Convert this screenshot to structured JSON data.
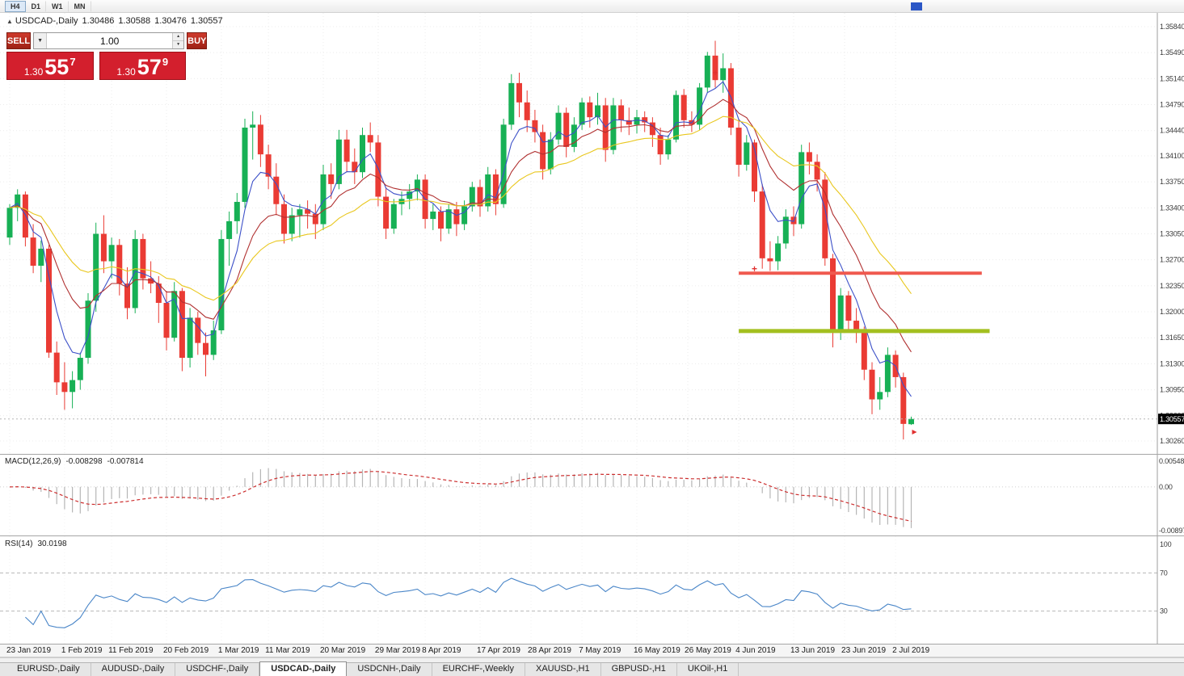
{
  "window": {
    "toolbar": {
      "timeframes": [
        {
          "label": "H4",
          "active": true
        },
        {
          "label": "D1",
          "active": false
        },
        {
          "label": "W1",
          "active": false
        },
        {
          "label": "MN",
          "active": false
        }
      ]
    },
    "title": {
      "icon": "▲",
      "symbol": "USDCAD-,Daily",
      "open": "1.30486",
      "high": "1.30588",
      "low": "1.30476",
      "close": "1.30557"
    }
  },
  "one_click": {
    "sell_label": "SELL",
    "buy_label": "BUY",
    "volume": "1.00",
    "dropdown_icon": "▼",
    "spin_up_icon": "▲",
    "spin_down_icon": "▼",
    "sell_price": {
      "prefix": "1.30",
      "pips": "55",
      "point": "7"
    },
    "buy_price": {
      "prefix": "1.30",
      "pips": "57",
      "point": "9"
    }
  },
  "indicators": {
    "macd": {
      "label": "MACD(12,26,9)",
      "value_main": "-0.008298",
      "value_signal": "-0.007814",
      "axis_labels": [
        "0.005484",
        "0.00",
        "-0.008973"
      ]
    },
    "rsi": {
      "label": "RSI(14)",
      "value": "30.0198",
      "axis_labels": [
        "100",
        "70",
        "30"
      ],
      "levels": [
        70,
        30
      ]
    }
  },
  "tabs": [
    {
      "label": "EURUSD-,Daily",
      "active": false
    },
    {
      "label": "AUDUSD-,Daily",
      "active": false
    },
    {
      "label": "USDCHF-,Daily",
      "active": false
    },
    {
      "label": "USDCAD-,Daily",
      "active": true
    },
    {
      "label": "USDCNH-,Daily",
      "active": false
    },
    {
      "label": "EURCHF-,Weekly",
      "active": false
    },
    {
      "label": "XAUUSD-,H1",
      "active": false
    },
    {
      "label": "GBPUSD-,H1",
      "active": false
    },
    {
      "label": "UKOil-,H1",
      "active": false
    }
  ],
  "chart_data": {
    "type": "candlestick",
    "symbol": "USDCAD",
    "timeframe": "Daily",
    "price_axis": {
      "labels": [
        "1.35840",
        "1.35490",
        "1.35140",
        "1.34790",
        "1.34440",
        "1.34100",
        "1.33750",
        "1.33400",
        "1.33050",
        "1.32700",
        "1.32350",
        "1.32000",
        "1.31650",
        "1.31300",
        "1.30950",
        "1.30600",
        "1.30260"
      ],
      "max": 1.3584,
      "min": 1.3026,
      "current": "1.30557",
      "current_value": 1.30557
    },
    "date_axis": {
      "labels": [
        "23 Jan 2019",
        "1 Feb 2019",
        "11 Feb 2019",
        "20 Feb 2019",
        "1 Mar 2019",
        "11 Mar 2019",
        "20 Mar 2019",
        "29 Mar 2019",
        "8 Apr 2019",
        "17 Apr 2019",
        "28 Apr 2019",
        "7 May 2019",
        "16 May 2019",
        "26 May 2019",
        "4 Jun 2019",
        "13 Jun 2019",
        "23 Jun 2019",
        "2 Jul 2019"
      ],
      "indices": [
        0,
        7,
        13,
        20,
        27,
        33,
        40,
        47,
        53,
        60,
        66.5,
        73,
        80,
        86.5,
        93,
        100,
        106.5,
        113
      ]
    },
    "candles": [
      [
        1.33,
        1.3345,
        1.329,
        1.334
      ],
      [
        1.334,
        1.3365,
        1.3322,
        1.3358
      ],
      [
        1.3358,
        1.3362,
        1.3288,
        1.33
      ],
      [
        1.33,
        1.3318,
        1.3252,
        1.3262
      ],
      [
        1.3262,
        1.3296,
        1.324,
        1.3285
      ],
      [
        1.3285,
        1.329,
        1.3138,
        1.3145
      ],
      [
        1.3145,
        1.316,
        1.3088,
        1.3105
      ],
      [
        1.3105,
        1.3132,
        1.3068,
        1.3092
      ],
      [
        1.3092,
        1.312,
        1.307,
        1.3108
      ],
      [
        1.3108,
        1.3145,
        1.3095,
        1.3138
      ],
      [
        1.3138,
        1.3225,
        1.313,
        1.3215
      ],
      [
        1.3215,
        1.332,
        1.32,
        1.3305
      ],
      [
        1.3305,
        1.333,
        1.3252,
        1.3268
      ],
      [
        1.3268,
        1.33,
        1.3245,
        1.329
      ],
      [
        1.329,
        1.3298,
        1.3222,
        1.3238
      ],
      [
        1.3238,
        1.326,
        1.319,
        1.3205
      ],
      [
        1.3205,
        1.331,
        1.3198,
        1.3298
      ],
      [
        1.3298,
        1.3305,
        1.323,
        1.3245
      ],
      [
        1.3245,
        1.3268,
        1.3225,
        1.3238
      ],
      [
        1.3238,
        1.3248,
        1.3185,
        1.3212
      ],
      [
        1.3212,
        1.3228,
        1.3148,
        1.3165
      ],
      [
        1.3165,
        1.324,
        1.316,
        1.3228
      ],
      [
        1.3228,
        1.3232,
        1.312,
        1.3138
      ],
      [
        1.3138,
        1.3205,
        1.3125,
        1.3192
      ],
      [
        1.3192,
        1.32,
        1.3142,
        1.3158
      ],
      [
        1.3158,
        1.3172,
        1.3113,
        1.3142
      ],
      [
        1.3142,
        1.3188,
        1.3135,
        1.3175
      ],
      [
        1.3175,
        1.331,
        1.317,
        1.3298
      ],
      [
        1.3298,
        1.3335,
        1.3262,
        1.3322
      ],
      [
        1.3322,
        1.336,
        1.3305,
        1.3348
      ],
      [
        1.3348,
        1.346,
        1.334,
        1.3448
      ],
      [
        1.3448,
        1.347,
        1.3405,
        1.3452
      ],
      [
        1.3452,
        1.3465,
        1.3395,
        1.3412
      ],
      [
        1.3412,
        1.3425,
        1.3365,
        1.3382
      ],
      [
        1.3382,
        1.34,
        1.333,
        1.3345
      ],
      [
        1.3345,
        1.3358,
        1.3292,
        1.3305
      ],
      [
        1.3305,
        1.334,
        1.3295,
        1.333
      ],
      [
        1.333,
        1.3345,
        1.33,
        1.3338
      ],
      [
        1.3338,
        1.335,
        1.3312,
        1.3332
      ],
      [
        1.3332,
        1.3345,
        1.3298,
        1.3318
      ],
      [
        1.3318,
        1.3398,
        1.331,
        1.3385
      ],
      [
        1.3385,
        1.34,
        1.3352,
        1.3372
      ],
      [
        1.3372,
        1.3445,
        1.3365,
        1.3432
      ],
      [
        1.3432,
        1.3445,
        1.3388,
        1.3402
      ],
      [
        1.3402,
        1.342,
        1.3372,
        1.3388
      ],
      [
        1.3388,
        1.3448,
        1.338,
        1.3438
      ],
      [
        1.3438,
        1.3455,
        1.3415,
        1.3428
      ],
      [
        1.3428,
        1.3438,
        1.3342,
        1.3355
      ],
      [
        1.3355,
        1.3368,
        1.3298,
        1.3312
      ],
      [
        1.3312,
        1.3352,
        1.3305,
        1.3345
      ],
      [
        1.3345,
        1.3362,
        1.333,
        1.3352
      ],
      [
        1.3352,
        1.3372,
        1.3338,
        1.3362
      ],
      [
        1.3362,
        1.3385,
        1.335,
        1.3378
      ],
      [
        1.3378,
        1.3385,
        1.3312,
        1.3325
      ],
      [
        1.3325,
        1.3345,
        1.331,
        1.3335
      ],
      [
        1.3335,
        1.3342,
        1.3295,
        1.3312
      ],
      [
        1.3312,
        1.3345,
        1.3305,
        1.3338
      ],
      [
        1.3338,
        1.3348,
        1.3302,
        1.3318
      ],
      [
        1.3318,
        1.335,
        1.331,
        1.3342
      ],
      [
        1.3342,
        1.3375,
        1.3335,
        1.3368
      ],
      [
        1.3368,
        1.3378,
        1.3328,
        1.3342
      ],
      [
        1.3342,
        1.3395,
        1.3335,
        1.3385
      ],
      [
        1.3385,
        1.3392,
        1.333,
        1.3345
      ],
      [
        1.3345,
        1.346,
        1.334,
        1.3452
      ],
      [
        1.3452,
        1.352,
        1.3445,
        1.3508
      ],
      [
        1.3508,
        1.3522,
        1.3462,
        1.3482
      ],
      [
        1.3482,
        1.3498,
        1.3442,
        1.3458
      ],
      [
        1.3458,
        1.3472,
        1.3428,
        1.3442
      ],
      [
        1.3442,
        1.3452,
        1.3378,
        1.3392
      ],
      [
        1.3392,
        1.3442,
        1.3385,
        1.3432
      ],
      [
        1.3432,
        1.3478,
        1.3425,
        1.3468
      ],
      [
        1.3468,
        1.3475,
        1.3408,
        1.3422
      ],
      [
        1.3422,
        1.3462,
        1.3415,
        1.3452
      ],
      [
        1.3452,
        1.3488,
        1.3445,
        1.3482
      ],
      [
        1.3482,
        1.349,
        1.3448,
        1.3462
      ],
      [
        1.3462,
        1.3495,
        1.3452,
        1.3478
      ],
      [
        1.3478,
        1.3488,
        1.3402,
        1.3418
      ],
      [
        1.3418,
        1.3488,
        1.3412,
        1.3478
      ],
      [
        1.3478,
        1.3486,
        1.3442,
        1.3458
      ],
      [
        1.3458,
        1.3475,
        1.3438,
        1.3452
      ],
      [
        1.3452,
        1.3472,
        1.344,
        1.3462
      ],
      [
        1.3462,
        1.347,
        1.3442,
        1.3455
      ],
      [
        1.3455,
        1.3462,
        1.3422,
        1.3438
      ],
      [
        1.3438,
        1.3448,
        1.3398,
        1.3412
      ],
      [
        1.3412,
        1.3438,
        1.3405,
        1.3432
      ],
      [
        1.3432,
        1.3498,
        1.3428,
        1.3492
      ],
      [
        1.3492,
        1.35,
        1.3448,
        1.3458
      ],
      [
        1.3458,
        1.347,
        1.3442,
        1.3452
      ],
      [
        1.3452,
        1.3508,
        1.3445,
        1.3502
      ],
      [
        1.3502,
        1.355,
        1.3495,
        1.3545
      ],
      [
        1.3545,
        1.3565,
        1.3502,
        1.3512
      ],
      [
        1.3512,
        1.3548,
        1.3495,
        1.3528
      ],
      [
        1.3528,
        1.3535,
        1.3438,
        1.3448
      ],
      [
        1.3448,
        1.346,
        1.3382,
        1.3398
      ],
      [
        1.3398,
        1.3438,
        1.339,
        1.3428
      ],
      [
        1.3428,
        1.3432,
        1.3348,
        1.3362
      ],
      [
        1.3362,
        1.3372,
        1.3258,
        1.3272
      ],
      [
        1.3272,
        1.3295,
        1.3255,
        1.3268
      ],
      [
        1.3268,
        1.3302,
        1.3256,
        1.3292
      ],
      [
        1.3292,
        1.3338,
        1.3285,
        1.3328
      ],
      [
        1.3328,
        1.3342,
        1.3302,
        1.3318
      ],
      [
        1.3318,
        1.3425,
        1.3312,
        1.3415
      ],
      [
        1.3415,
        1.3428,
        1.3385,
        1.3402
      ],
      [
        1.3402,
        1.3412,
        1.3362,
        1.3378
      ],
      [
        1.3378,
        1.3388,
        1.3262,
        1.3272
      ],
      [
        1.3272,
        1.3278,
        1.3152,
        1.3172
      ],
      [
        1.3172,
        1.3232,
        1.3162,
        1.3222
      ],
      [
        1.3222,
        1.3228,
        1.3172,
        1.3188
      ],
      [
        1.3188,
        1.3205,
        1.3158,
        1.3172
      ],
      [
        1.3172,
        1.318,
        1.3108,
        1.3122
      ],
      [
        1.3122,
        1.3132,
        1.3062,
        1.3082
      ],
      [
        1.3082,
        1.3112,
        1.3068,
        1.3092
      ],
      [
        1.3092,
        1.3152,
        1.3085,
        1.3142
      ],
      [
        1.3142,
        1.3148,
        1.3098,
        1.3112
      ],
      [
        1.3112,
        1.3118,
        1.3028,
        1.3049
      ],
      [
        1.30486,
        1.30588,
        1.30476,
        1.30557
      ]
    ],
    "moving_averages": [
      {
        "name": "ma-fast-line",
        "period": 5,
        "color": "#3c50c8"
      },
      {
        "name": "ma-medium-line",
        "period": 12,
        "color": "#b03030"
      },
      {
        "name": "ma-slow-line",
        "period": 24,
        "color": "#e9c71e"
      }
    ],
    "hlines": [
      {
        "name": "resistance-line",
        "price": 1.3252,
        "color": "#f0594f",
        "stroke_width": 4,
        "from_index": 93,
        "to_index": 124
      },
      {
        "name": "support-line",
        "price": 1.3174,
        "color": "#a3bf1f",
        "stroke_width": 5,
        "from_index": 93,
        "to_index": 125
      }
    ],
    "markers": [
      {
        "shape": "cross",
        "index": 90,
        "price": 1.3522
      },
      {
        "shape": "cross",
        "index": 95,
        "price": 1.3258
      },
      {
        "shape": "arrow",
        "index": 115,
        "price": 1.3038
      }
    ],
    "colors": {
      "bull": "#17b055",
      "bear": "#ea3b34",
      "grid": "#ececec",
      "grid_sub": "#f2f2f2",
      "axis_text": "#3a3a3a",
      "bid_line": "#b5b5b5",
      "bid_tag_bg": "#000000",
      "bid_tag_text": "#ffffff",
      "macd_hist": "#b6b6b6",
      "macd_signal": "#cc2e2e",
      "rsi_line": "#4a86c8",
      "level_line": "#b8b8b8"
    }
  }
}
